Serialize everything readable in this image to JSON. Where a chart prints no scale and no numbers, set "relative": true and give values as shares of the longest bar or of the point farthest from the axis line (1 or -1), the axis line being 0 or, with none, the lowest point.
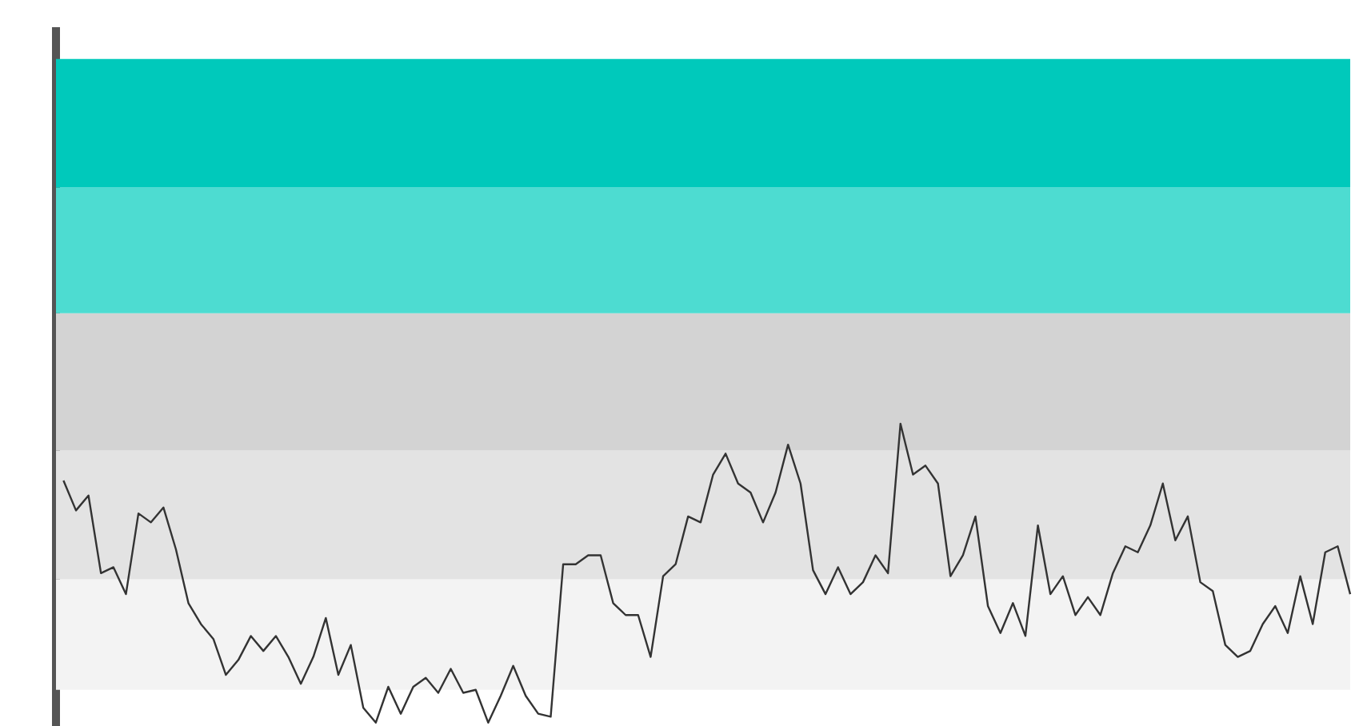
{
  "chart_data": {
    "type": "line",
    "relative": true,
    "marker": "none",
    "line_style": "solid",
    "categories": [
      null,
      null,
      null,
      null,
      null,
      null,
      null,
      null,
      null,
      null,
      null,
      null,
      null,
      null,
      null,
      null,
      null,
      null,
      null,
      null,
      null,
      null,
      null,
      null,
      null,
      null,
      null,
      null,
      null,
      null,
      null,
      null,
      null,
      null,
      null,
      null,
      null,
      null,
      null,
      null,
      null,
      null,
      null,
      null,
      null,
      null,
      null,
      null,
      null,
      null,
      null,
      null,
      null,
      null,
      null,
      null,
      null,
      null,
      null,
      null,
      null,
      null,
      null,
      null,
      null,
      null,
      null,
      null,
      null,
      null,
      null,
      null,
      null,
      null,
      null,
      null,
      null,
      null,
      null,
      null,
      null,
      null,
      null,
      null,
      null,
      null,
      null,
      null,
      null,
      null,
      null,
      null,
      null,
      null,
      null,
      null,
      null,
      null,
      null,
      null,
      null,
      null,
      null,
      null
    ],
    "series": [
      {
        "color": "#333333",
        "values": [
          0.81,
          0.71,
          0.76,
          0.5,
          0.52,
          0.43,
          0.7,
          0.67,
          0.72,
          0.58,
          0.4,
          0.33,
          0.28,
          0.16,
          0.21,
          0.29,
          0.24,
          0.29,
          0.22,
          0.13,
          0.22,
          0.35,
          0.16,
          0.26,
          0.05,
          0,
          0.12,
          0.03,
          0.12,
          0.15,
          0.1,
          0.18,
          0.1,
          0.11,
          0,
          0.09,
          0.19,
          0.09,
          0.03,
          0.02,
          0.53,
          0.53,
          0.56,
          0.56,
          0.4,
          0.36,
          0.36,
          0.22,
          0.49,
          0.53,
          0.69,
          0.67,
          0.83,
          0.9,
          0.8,
          0.77,
          0.67,
          0.77,
          0.93,
          0.8,
          0.51,
          0.43,
          0.52,
          0.43,
          0.47,
          0.56,
          0.5,
          1,
          0.83,
          0.86,
          0.8,
          0.49,
          0.56,
          0.69,
          0.39,
          0.3,
          0.4,
          0.29,
          0.66,
          0.43,
          0.49,
          0.36,
          0.42,
          0.36,
          0.5,
          0.59,
          0.57,
          0.66,
          0.8,
          0.61,
          0.69,
          0.47,
          0.44,
          0.26,
          0.22,
          0.24,
          0.33,
          0.39,
          0.3,
          0.49,
          0.33,
          0.57,
          0.59,
          0.43
        ]
      }
    ],
    "bands": [
      {
        "axis": "y",
        "from": 0.11,
        "to": 0.48,
        "color": "#f3f3f3"
      },
      {
        "axis": "y",
        "from": 0.48,
        "to": 0.91,
        "color": "#e3e3e3"
      },
      {
        "axis": "y",
        "from": 0.91,
        "to": 1.37,
        "color": "#d3d3d3"
      },
      {
        "axis": "y",
        "from": 1.37,
        "to": 1.79,
        "color": "#4ddcd1"
      },
      {
        "axis": "y",
        "from": 1.79,
        "to": 2.22,
        "color": "#00c9bb"
      }
    ]
  }
}
